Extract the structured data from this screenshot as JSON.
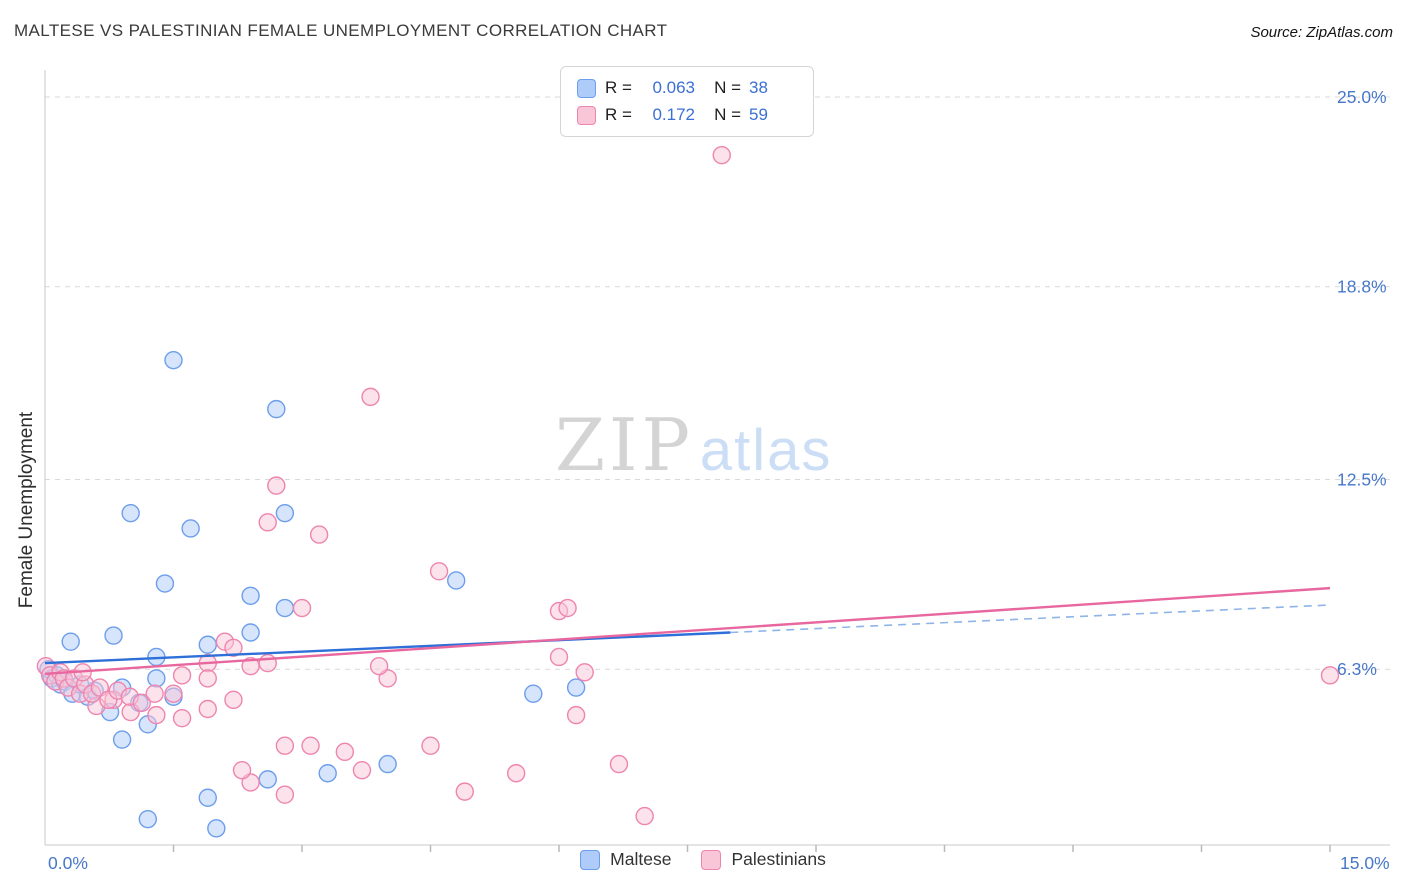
{
  "header": {
    "title": "MALTESE VS PALESTINIAN FEMALE UNEMPLOYMENT CORRELATION CHART",
    "source": "Source: ZipAtlas.com"
  },
  "watermark": {
    "zip": "ZIP",
    "atlas": "atlas"
  },
  "legend_box": {
    "rows": [
      {
        "series": "Maltese",
        "r_label": "R =",
        "r_value": "0.063",
        "n_label": "N =",
        "n_value": "38"
      },
      {
        "series": "Palestinians",
        "r_label": "R =",
        "r_value": "0.172",
        "n_label": "N =",
        "n_value": "59"
      }
    ]
  },
  "bottom_legend": {
    "items": [
      {
        "label": "Maltese"
      },
      {
        "label": "Palestinians"
      }
    ]
  },
  "style": {
    "axis_label_color": "#4777C9",
    "legend_value_color": "#3B6FD4",
    "grid_color": "#d9d9d9",
    "axis_line_color": "#c9c9c9",
    "tick_color": "#b9b9b9",
    "watermark_zip_color": "#d4d4d4",
    "watermark_atlas_color": "#cbdef6"
  },
  "chart_data": {
    "type": "scatter",
    "title": "MALTESE VS PALESTINIAN FEMALE UNEMPLOYMENT CORRELATION CHART",
    "xlabel": "",
    "ylabel": "Female Unemployment",
    "units": "%",
    "xlim": [
      0,
      15
    ],
    "ylim": [
      0,
      26
    ],
    "grid": "horizontal-dashed",
    "legend_position": "top-center",
    "x_tick_labels": [
      {
        "value": 0,
        "label": "0.0%"
      },
      {
        "value": 15,
        "label": "15.0%"
      }
    ],
    "x_minor_ticks": [
      1.5,
      3,
      4.5,
      6,
      7.5,
      9,
      10.5,
      12,
      13.5,
      15
    ],
    "y_tick_labels": [
      {
        "value": 25.0,
        "label": "25.0%"
      },
      {
        "value": 18.8,
        "label": "18.8%"
      },
      {
        "value": 12.5,
        "label": "12.5%"
      },
      {
        "value": 6.3,
        "label": "6.3%"
      }
    ],
    "series": [
      {
        "name": "Maltese",
        "R": 0.063,
        "N": 38,
        "fill": "#AECBFA",
        "stroke": "#6D9EEB",
        "points": [
          [
            0.04,
            6.3
          ],
          [
            0.08,
            6.0
          ],
          [
            0.14,
            6.1
          ],
          [
            0.18,
            5.8
          ],
          [
            0.23,
            5.9
          ],
          [
            0.32,
            5.5
          ],
          [
            0.41,
            5.8
          ],
          [
            0.5,
            5.4
          ],
          [
            0.58,
            5.6
          ],
          [
            0.3,
            7.2
          ],
          [
            0.8,
            7.4
          ],
          [
            1.3,
            6.7
          ],
          [
            1.9,
            7.1
          ],
          [
            1.3,
            6.0
          ],
          [
            0.9,
            5.7
          ],
          [
            1.1,
            5.2
          ],
          [
            1.5,
            5.4
          ],
          [
            0.76,
            4.9
          ],
          [
            1.2,
            4.5
          ],
          [
            0.9,
            4.0
          ],
          [
            1.5,
            16.4
          ],
          [
            2.7,
            14.8
          ],
          [
            1.0,
            11.4
          ],
          [
            1.7,
            10.9
          ],
          [
            2.8,
            11.4
          ],
          [
            1.4,
            9.1
          ],
          [
            2.4,
            8.7
          ],
          [
            4.8,
            9.2
          ],
          [
            2.4,
            7.5
          ],
          [
            2.8,
            8.3
          ],
          [
            3.3,
            2.9
          ],
          [
            4.0,
            3.2
          ],
          [
            2.6,
            2.7
          ],
          [
            1.9,
            2.1
          ],
          [
            1.2,
            1.4
          ],
          [
            2.0,
            1.1
          ],
          [
            5.7,
            5.5
          ],
          [
            6.2,
            5.7
          ]
        ]
      },
      {
        "name": "Palestinians",
        "R": 0.172,
        "N": 59,
        "fill": "#F9C6D8",
        "stroke": "#EE85AE",
        "points": [
          [
            7.9,
            23.1
          ],
          [
            3.8,
            15.2
          ],
          [
            2.7,
            12.3
          ],
          [
            2.6,
            11.1
          ],
          [
            3.2,
            10.7
          ],
          [
            4.6,
            9.5
          ],
          [
            3.0,
            8.3
          ],
          [
            6.0,
            8.2
          ],
          [
            6.1,
            8.3
          ],
          [
            15.0,
            6.1
          ],
          [
            2.1,
            7.2
          ],
          [
            2.2,
            7.0
          ],
          [
            1.9,
            6.5
          ],
          [
            1.6,
            6.1
          ],
          [
            4.0,
            6.0
          ],
          [
            6.0,
            6.7
          ],
          [
            6.3,
            6.2
          ],
          [
            3.9,
            6.4
          ],
          [
            2.4,
            6.4
          ],
          [
            2.6,
            6.5
          ],
          [
            1.9,
            6.0
          ],
          [
            6.2,
            4.8
          ],
          [
            4.5,
            3.8
          ],
          [
            5.5,
            2.9
          ],
          [
            6.7,
            3.2
          ],
          [
            4.9,
            2.3
          ],
          [
            7.0,
            1.5
          ],
          [
            3.7,
            3.0
          ],
          [
            2.8,
            3.8
          ],
          [
            2.4,
            2.6
          ],
          [
            2.3,
            3.0
          ],
          [
            2.8,
            2.2
          ],
          [
            3.1,
            3.8
          ],
          [
            3.5,
            3.6
          ],
          [
            1.3,
            4.8
          ],
          [
            1.0,
            4.9
          ],
          [
            1.6,
            4.7
          ],
          [
            0.6,
            5.1
          ],
          [
            0.8,
            5.3
          ],
          [
            1.9,
            5.0
          ],
          [
            2.2,
            5.3
          ],
          [
            1.5,
            5.5
          ],
          [
            0.01,
            6.4
          ],
          [
            0.06,
            6.1
          ],
          [
            0.12,
            5.9
          ],
          [
            0.18,
            6.2
          ],
          [
            0.22,
            6.0
          ],
          [
            0.27,
            5.7
          ],
          [
            0.34,
            6.0
          ],
          [
            0.41,
            5.5
          ],
          [
            0.47,
            5.8
          ],
          [
            0.55,
            5.5
          ],
          [
            0.64,
            5.7
          ],
          [
            0.74,
            5.3
          ],
          [
            0.85,
            5.6
          ],
          [
            0.99,
            5.4
          ],
          [
            1.13,
            5.2
          ],
          [
            1.28,
            5.5
          ],
          [
            0.44,
            6.2
          ]
        ]
      }
    ],
    "trend_lines": [
      {
        "series": "Maltese",
        "color": "#2E6FD8",
        "dash_color": "#8FB4E8",
        "solid": [
          [
            0,
            6.5
          ],
          [
            8,
            7.5
          ]
        ],
        "dashed": [
          [
            8,
            7.5
          ],
          [
            15,
            8.4
          ]
        ]
      },
      {
        "series": "Palestinians",
        "color": "#E8679F",
        "solid": [
          [
            0,
            6.15
          ],
          [
            15,
            8.95
          ]
        ]
      }
    ]
  }
}
